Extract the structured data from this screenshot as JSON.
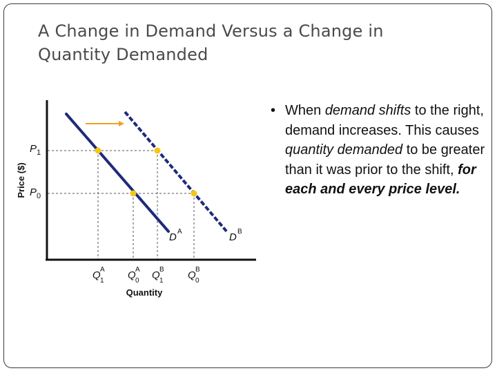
{
  "slide": {
    "title_line1": "A Change in Demand Versus a Change in",
    "title_line2": "Quantity Demanded"
  },
  "graph": {
    "y_axis_label": "Price ($)",
    "x_axis_label": "Quantity",
    "price_labels": [
      {
        "id": "p1",
        "letter": "P",
        "sub": "1"
      },
      {
        "id": "p0",
        "letter": "P",
        "sub": "0"
      }
    ],
    "quantity_labels": [
      {
        "id": "q1a",
        "letter": "Q",
        "sub": "1",
        "sup": "A"
      },
      {
        "id": "q0a",
        "letter": "Q",
        "sub": "0",
        "sup": "A"
      },
      {
        "id": "q1b",
        "letter": "Q",
        "sub": "1",
        "sup": "B"
      },
      {
        "id": "q0b",
        "letter": "Q",
        "sub": "0",
        "sup": "B"
      }
    ],
    "curves": [
      {
        "id": "da",
        "letter": "D",
        "sup": "A",
        "style": "solid"
      },
      {
        "id": "db",
        "letter": "D",
        "sup": "B",
        "style": "dashed"
      }
    ],
    "colors": {
      "curve": "#1f2a7a",
      "point": "#f5c518",
      "shift_arrow": "#f0a020",
      "axis": "#111111",
      "guide": "#555555"
    }
  },
  "bullet": {
    "symbol": "•",
    "t1": "When ",
    "e1": "demand shifts",
    "t2": " to the right, demand increases. This causes ",
    "e2": "quantity demanded",
    "t3": " to be greater than it was prior to the shift, ",
    "e3": "for each and every price level."
  }
}
